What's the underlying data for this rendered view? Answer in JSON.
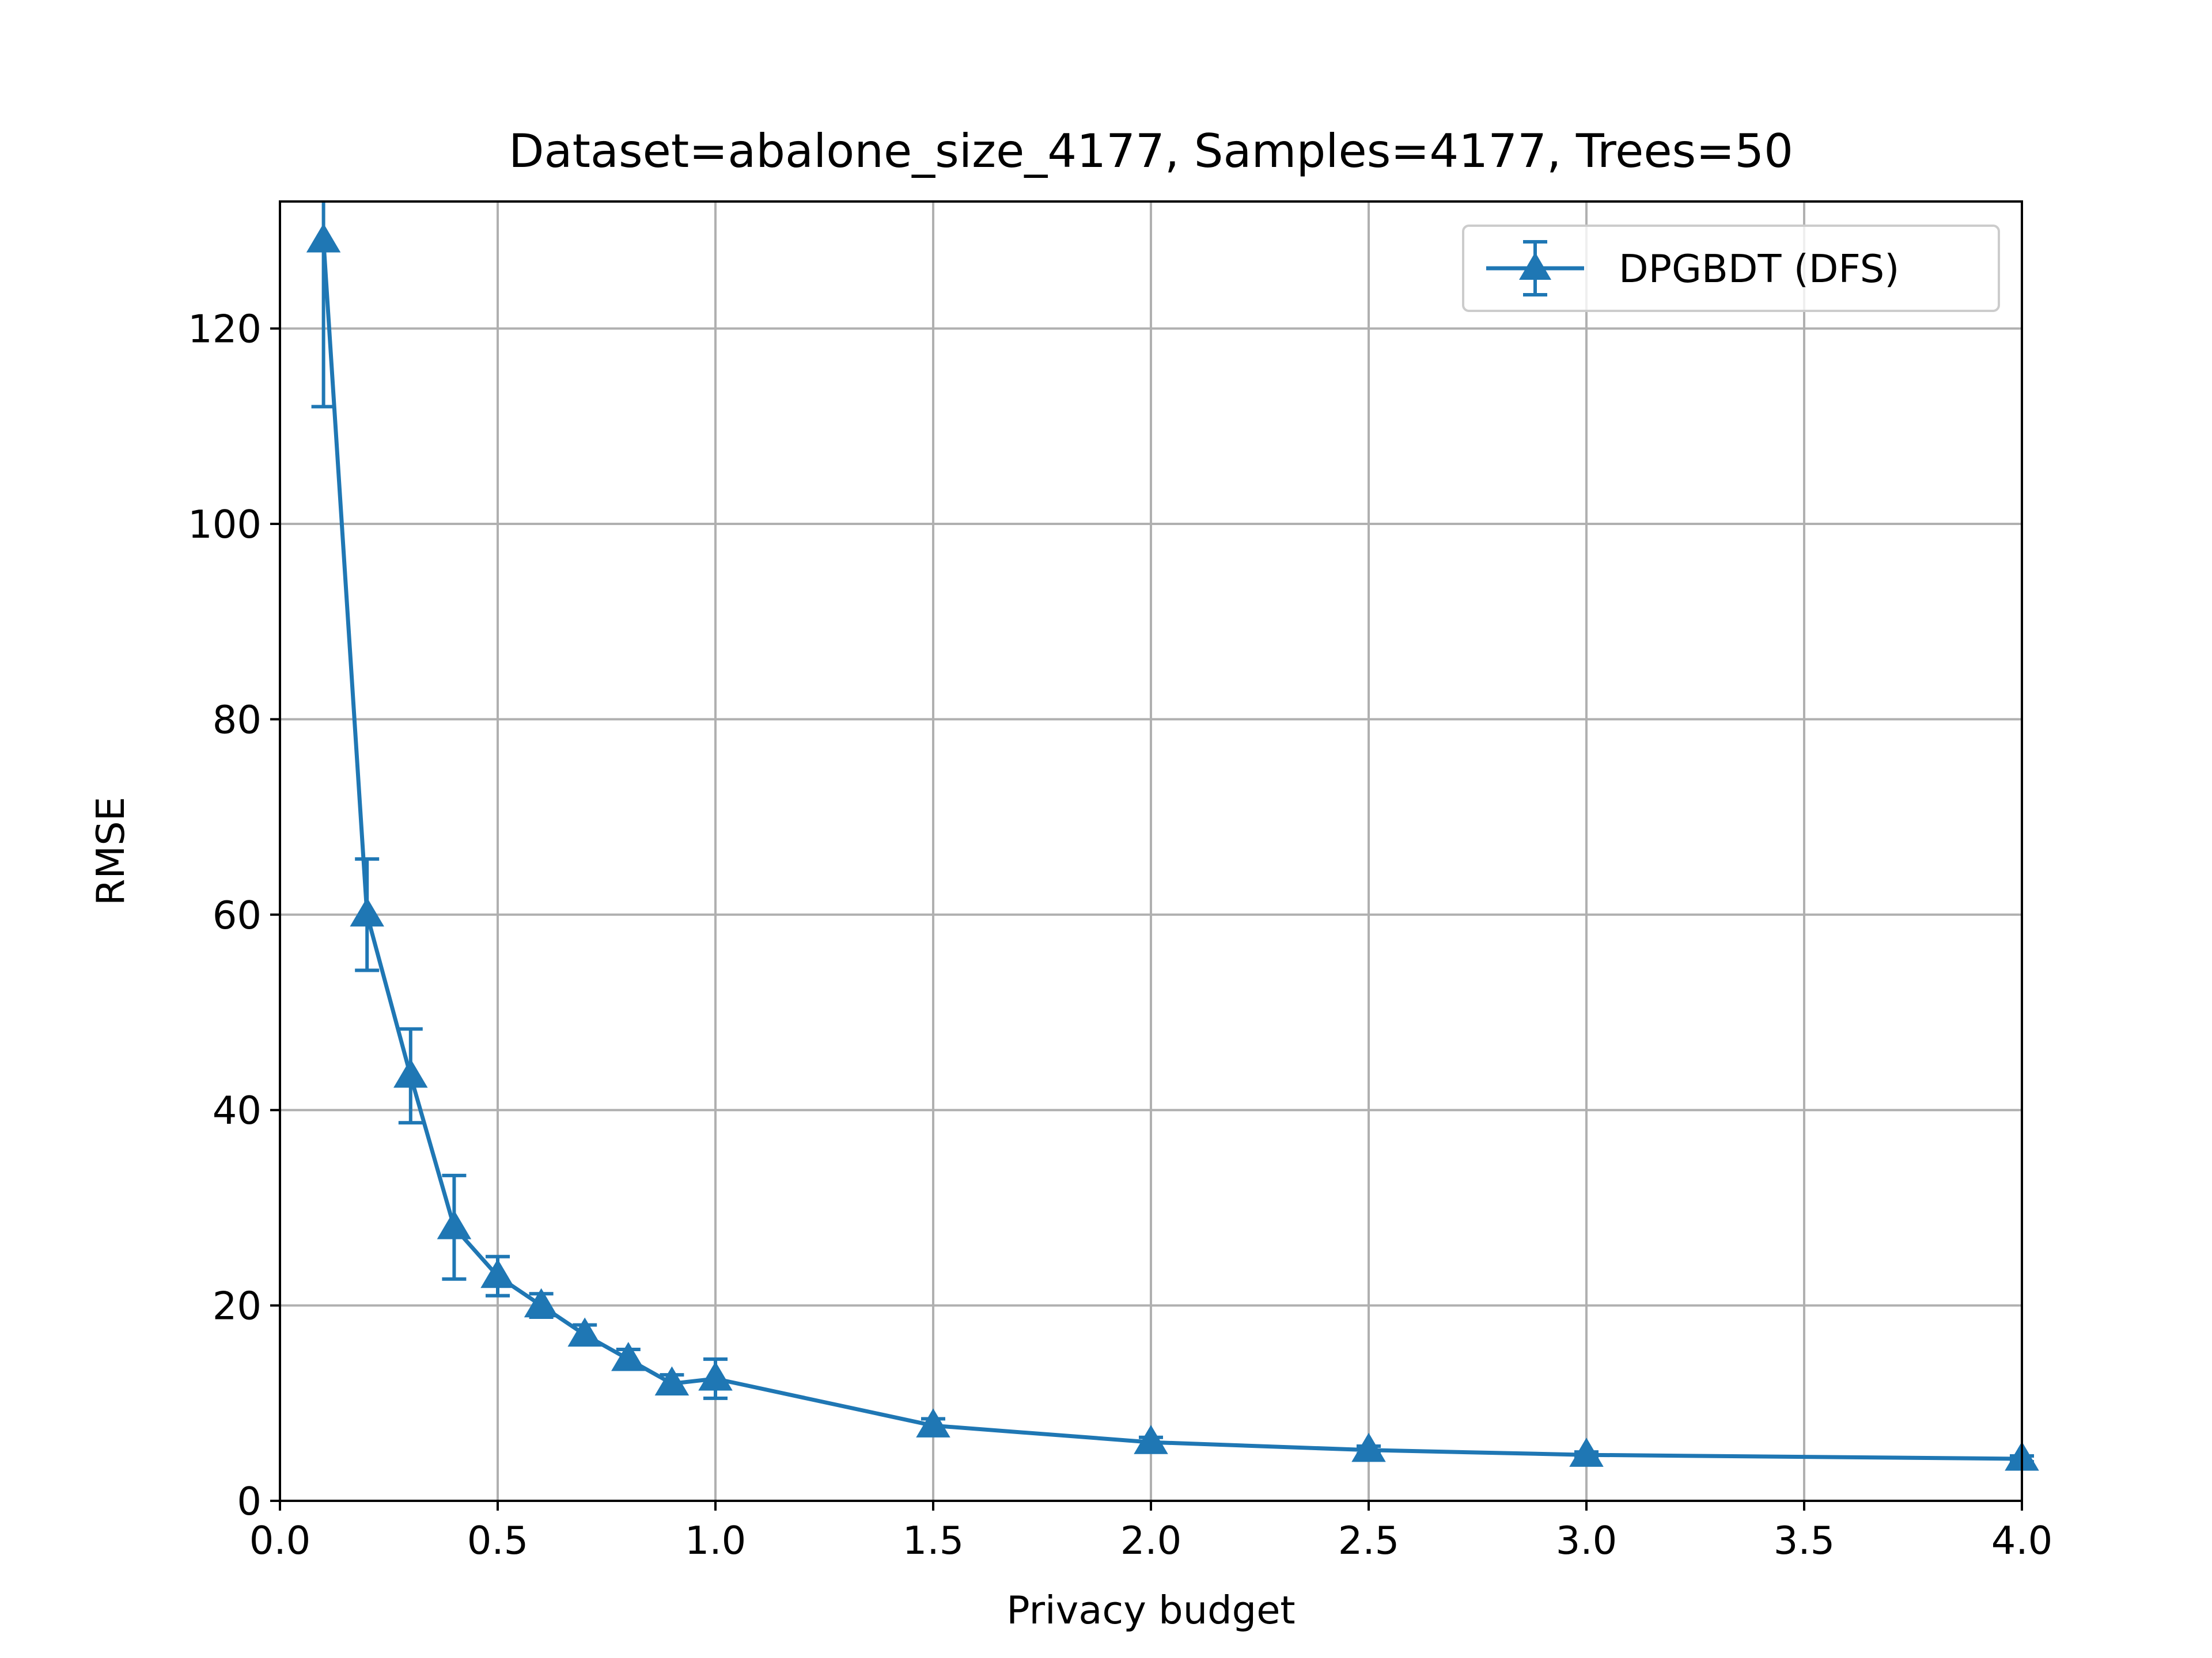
{
  "chart_data": {
    "type": "line",
    "title": "Dataset=abalone_size_4177, Samples=4177, Trees=50",
    "xlabel": "Privacy budget",
    "ylabel": "RMSE",
    "xlim": [
      0.0,
      4.0
    ],
    "ylim": [
      0,
      133
    ],
    "xticks": [
      "0.0",
      "0.5",
      "1.0",
      "1.5",
      "2.0",
      "2.5",
      "3.0",
      "3.5",
      "4.0"
    ],
    "yticks": [
      "0",
      "20",
      "40",
      "60",
      "80",
      "100",
      "120"
    ],
    "grid": true,
    "legend_position": "top-right",
    "series": [
      {
        "name": "DPGBDT (DFS)",
        "color": "#1f77b4",
        "marker": "triangle-up",
        "x": [
          0.1,
          0.2,
          0.3,
          0.4,
          0.5,
          0.6,
          0.7,
          0.8,
          0.9,
          1.0,
          1.5,
          2.0,
          2.5,
          3.0,
          4.0
        ],
        "y": [
          129.0,
          60.0,
          43.5,
          28.0,
          23.0,
          20.0,
          17.0,
          14.5,
          12.0,
          12.5,
          7.7,
          6.0,
          5.2,
          4.7,
          4.3
        ],
        "yerr": [
          17.0,
          5.7,
          4.8,
          5.3,
          2.0,
          1.2,
          1.0,
          1.0,
          0.9,
          2.0,
          0.7,
          0.5,
          0.4,
          0.3,
          0.3
        ]
      }
    ]
  }
}
